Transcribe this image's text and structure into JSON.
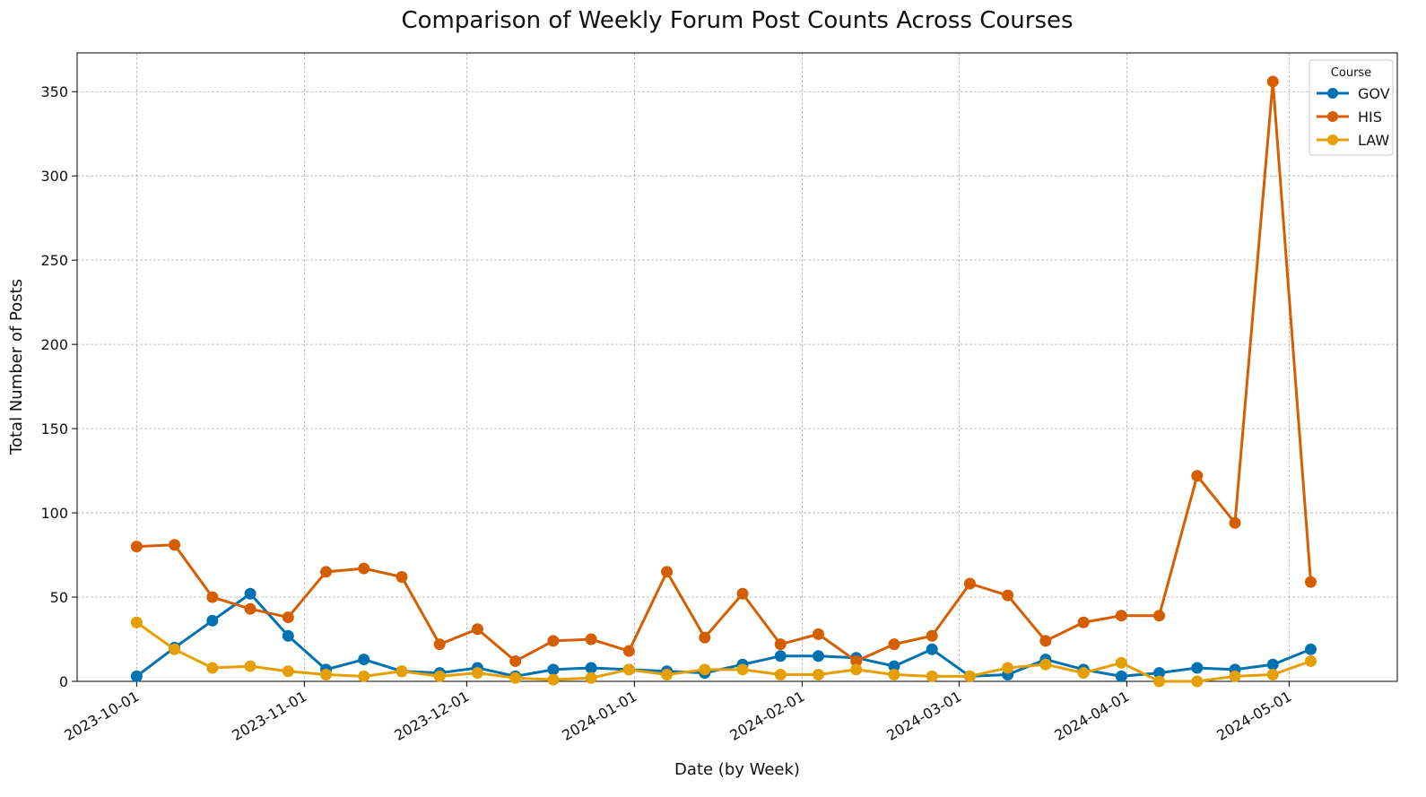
{
  "chart_data": {
    "type": "line",
    "title": "Comparison of Weekly Forum Post Counts Across Courses",
    "xlabel": "Date (by Week)",
    "ylabel": "Total Number of Posts",
    "x": [
      "2023-10-01",
      "2023-10-08",
      "2023-10-15",
      "2023-10-22",
      "2023-10-29",
      "2023-11-05",
      "2023-11-12",
      "2023-11-19",
      "2023-11-26",
      "2023-12-03",
      "2023-12-10",
      "2023-12-17",
      "2023-12-24",
      "2023-12-31",
      "2024-01-07",
      "2024-01-14",
      "2024-01-21",
      "2024-01-28",
      "2024-02-04",
      "2024-02-11",
      "2024-02-18",
      "2024-02-25",
      "2024-03-03",
      "2024-03-10",
      "2024-03-17",
      "2024-03-24",
      "2024-03-31",
      "2024-04-07",
      "2024-04-14",
      "2024-04-21",
      "2024-04-28",
      "2024-05-05"
    ],
    "x_ticks": [
      "2023-10-01",
      "2023-11-01",
      "2023-12-01",
      "2024-01-01",
      "2024-02-01",
      "2024-03-01",
      "2024-04-01",
      "2024-05-01"
    ],
    "xlim": [
      "2023-09-20",
      "2024-05-21"
    ],
    "y_ticks": [
      0,
      50,
      100,
      150,
      200,
      250,
      300,
      350
    ],
    "ylim": [
      0,
      373
    ],
    "grid": true,
    "legend": {
      "title": "Course",
      "placement": "top-right"
    },
    "series": [
      {
        "name": "GOV",
        "color": "#0072b2",
        "values": [
          3,
          20,
          36,
          52,
          27,
          7,
          13,
          6,
          5,
          8,
          3,
          7,
          8,
          7,
          6,
          5,
          10,
          15,
          15,
          14,
          9,
          19,
          3,
          4,
          13,
          7,
          3,
          5,
          8,
          7,
          10,
          19
        ]
      },
      {
        "name": "HIS",
        "color": "#d55e00",
        "values": [
          80,
          81,
          50,
          43,
          38,
          65,
          67,
          62,
          22,
          31,
          12,
          24,
          25,
          18,
          65,
          26,
          52,
          22,
          28,
          12,
          22,
          27,
          58,
          51,
          24,
          35,
          39,
          39,
          122,
          94,
          356,
          59
        ]
      },
      {
        "name": "LAW",
        "color": "#e69f00",
        "values": [
          35,
          19,
          8,
          9,
          6,
          4,
          3,
          6,
          3,
          5,
          2,
          1,
          2,
          7,
          4,
          7,
          7,
          4,
          4,
          7,
          4,
          3,
          3,
          8,
          10,
          5,
          11,
          0,
          0,
          3,
          4,
          12
        ]
      }
    ]
  }
}
